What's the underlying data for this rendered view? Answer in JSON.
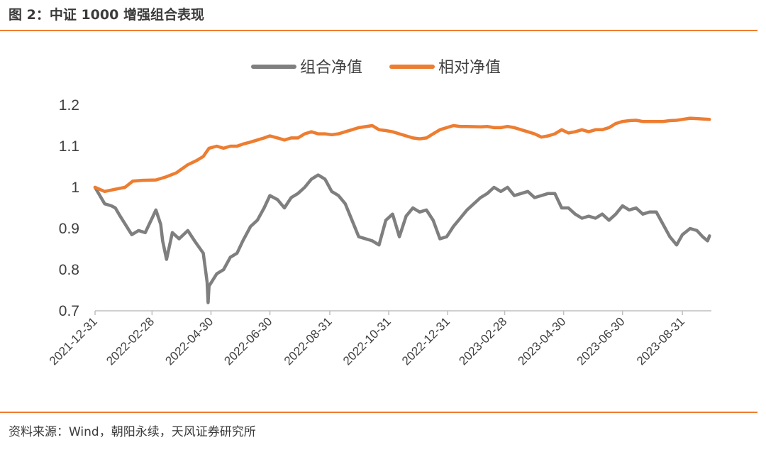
{
  "figure": {
    "title": "图 2：中证 1000 增强组合表现",
    "source": "资料来源：Wind，朝阳永续，天风证券研究所"
  },
  "chart_data": {
    "type": "line",
    "title": "",
    "xlabel": "",
    "ylabel": "",
    "ylim": [
      0.7,
      1.2
    ],
    "yticks": [
      0.7,
      0.8,
      0.9,
      1.0,
      1.1,
      1.2
    ],
    "ytick_labels": [
      "0.7",
      "0.8",
      "0.9",
      "1",
      "1.1",
      "1.2"
    ],
    "xlim": [
      "2021-12-31",
      "2023-09-30"
    ],
    "xticks": [
      "2021-12-31",
      "2022-02-28",
      "2022-04-30",
      "2022-06-30",
      "2022-08-31",
      "2022-10-31",
      "2022-12-31",
      "2023-02-28",
      "2023-04-30",
      "2023-06-30",
      "2023-08-31"
    ],
    "grid": false,
    "legend": "top-center",
    "series": [
      {
        "name": "组合净值",
        "color": "#7f7f7f",
        "points": [
          [
            "2021-12-31",
            1.0
          ],
          [
            "2022-01-05",
            0.98
          ],
          [
            "2022-01-10",
            0.96
          ],
          [
            "2022-01-17",
            0.955
          ],
          [
            "2022-01-21",
            0.95
          ],
          [
            "2022-01-26",
            0.93
          ],
          [
            "2022-02-07",
            0.885
          ],
          [
            "2022-02-14",
            0.895
          ],
          [
            "2022-02-21",
            0.89
          ],
          [
            "2022-02-28",
            0.925
          ],
          [
            "2022-03-04",
            0.945
          ],
          [
            "2022-03-09",
            0.91
          ],
          [
            "2022-03-11",
            0.87
          ],
          [
            "2022-03-15",
            0.825
          ],
          [
            "2022-03-21",
            0.89
          ],
          [
            "2022-03-28",
            0.875
          ],
          [
            "2022-04-06",
            0.895
          ],
          [
            "2022-04-13",
            0.87
          ],
          [
            "2022-04-19",
            0.85
          ],
          [
            "2022-04-22",
            0.84
          ],
          [
            "2022-04-26",
            0.77
          ],
          [
            "2022-04-27",
            0.72
          ],
          [
            "2022-04-28",
            0.76
          ],
          [
            "2022-05-06",
            0.79
          ],
          [
            "2022-05-13",
            0.8
          ],
          [
            "2022-05-20",
            0.83
          ],
          [
            "2022-05-27",
            0.84
          ],
          [
            "2022-06-02",
            0.87
          ],
          [
            "2022-06-10",
            0.905
          ],
          [
            "2022-06-17",
            0.92
          ],
          [
            "2022-06-24",
            0.95
          ],
          [
            "2022-06-30",
            0.98
          ],
          [
            "2022-07-08",
            0.97
          ],
          [
            "2022-07-15",
            0.95
          ],
          [
            "2022-07-22",
            0.975
          ],
          [
            "2022-07-29",
            0.985
          ],
          [
            "2022-08-05",
            1.0
          ],
          [
            "2022-08-12",
            1.02
          ],
          [
            "2022-08-19",
            1.03
          ],
          [
            "2022-08-26",
            1.02
          ],
          [
            "2022-09-02",
            0.99
          ],
          [
            "2022-09-09",
            0.98
          ],
          [
            "2022-09-16",
            0.96
          ],
          [
            "2022-09-23",
            0.92
          ],
          [
            "2022-09-30",
            0.88
          ],
          [
            "2022-10-14",
            0.87
          ],
          [
            "2022-10-21",
            0.86
          ],
          [
            "2022-10-28",
            0.92
          ],
          [
            "2022-11-04",
            0.935
          ],
          [
            "2022-11-11",
            0.88
          ],
          [
            "2022-11-18",
            0.93
          ],
          [
            "2022-11-25",
            0.95
          ],
          [
            "2022-12-02",
            0.94
          ],
          [
            "2022-12-09",
            0.945
          ],
          [
            "2022-12-16",
            0.92
          ],
          [
            "2022-12-23",
            0.875
          ],
          [
            "2022-12-30",
            0.88
          ],
          [
            "2023-01-06",
            0.905
          ],
          [
            "2023-01-13",
            0.925
          ],
          [
            "2023-01-20",
            0.945
          ],
          [
            "2023-02-03",
            0.975
          ],
          [
            "2023-02-10",
            0.985
          ],
          [
            "2023-02-17",
            1.0
          ],
          [
            "2023-02-24",
            0.99
          ],
          [
            "2023-03-03",
            1.0
          ],
          [
            "2023-03-10",
            0.98
          ],
          [
            "2023-03-17",
            0.985
          ],
          [
            "2023-03-24",
            0.99
          ],
          [
            "2023-03-31",
            0.975
          ],
          [
            "2023-04-07",
            0.98
          ],
          [
            "2023-04-14",
            0.985
          ],
          [
            "2023-04-21",
            0.985
          ],
          [
            "2023-04-28",
            0.95
          ],
          [
            "2023-05-05",
            0.95
          ],
          [
            "2023-05-12",
            0.935
          ],
          [
            "2023-05-19",
            0.925
          ],
          [
            "2023-05-26",
            0.93
          ],
          [
            "2023-06-02",
            0.925
          ],
          [
            "2023-06-09",
            0.935
          ],
          [
            "2023-06-16",
            0.92
          ],
          [
            "2023-06-23",
            0.935
          ],
          [
            "2023-06-30",
            0.955
          ],
          [
            "2023-07-07",
            0.945
          ],
          [
            "2023-07-14",
            0.95
          ],
          [
            "2023-07-21",
            0.935
          ],
          [
            "2023-07-28",
            0.94
          ],
          [
            "2023-08-04",
            0.94
          ],
          [
            "2023-08-11",
            0.91
          ],
          [
            "2023-08-18",
            0.88
          ],
          [
            "2023-08-25",
            0.86
          ],
          [
            "2023-08-31",
            0.885
          ],
          [
            "2023-09-08",
            0.9
          ],
          [
            "2023-09-15",
            0.895
          ],
          [
            "2023-09-21",
            0.88
          ],
          [
            "2023-09-26",
            0.87
          ],
          [
            "2023-09-28",
            0.882
          ]
        ]
      },
      {
        "name": "相对净值",
        "color": "#ed7d31",
        "points": [
          [
            "2021-12-31",
            1.0
          ],
          [
            "2022-01-10",
            0.99
          ],
          [
            "2022-01-20",
            0.995
          ],
          [
            "2022-01-31",
            1.0
          ],
          [
            "2022-02-08",
            1.015
          ],
          [
            "2022-02-18",
            1.017
          ],
          [
            "2022-03-04",
            1.018
          ],
          [
            "2022-03-14",
            1.025
          ],
          [
            "2022-03-25",
            1.035
          ],
          [
            "2022-04-06",
            1.055
          ],
          [
            "2022-04-15",
            1.065
          ],
          [
            "2022-04-22",
            1.075
          ],
          [
            "2022-04-28",
            1.095
          ],
          [
            "2022-05-06",
            1.1
          ],
          [
            "2022-05-13",
            1.095
          ],
          [
            "2022-05-20",
            1.1
          ],
          [
            "2022-05-27",
            1.1
          ],
          [
            "2022-06-02",
            1.105
          ],
          [
            "2022-06-10",
            1.11
          ],
          [
            "2022-06-17",
            1.115
          ],
          [
            "2022-06-24",
            1.12
          ],
          [
            "2022-06-30",
            1.125
          ],
          [
            "2022-07-08",
            1.12
          ],
          [
            "2022-07-15",
            1.115
          ],
          [
            "2022-07-22",
            1.12
          ],
          [
            "2022-07-29",
            1.12
          ],
          [
            "2022-08-05",
            1.13
          ],
          [
            "2022-08-12",
            1.135
          ],
          [
            "2022-08-19",
            1.13
          ],
          [
            "2022-08-26",
            1.13
          ],
          [
            "2022-09-02",
            1.128
          ],
          [
            "2022-09-09",
            1.13
          ],
          [
            "2022-09-16",
            1.135
          ],
          [
            "2022-09-23",
            1.14
          ],
          [
            "2022-09-30",
            1.145
          ],
          [
            "2022-10-14",
            1.15
          ],
          [
            "2022-10-21",
            1.14
          ],
          [
            "2022-10-28",
            1.138
          ],
          [
            "2022-11-04",
            1.135
          ],
          [
            "2022-11-11",
            1.13
          ],
          [
            "2022-11-18",
            1.125
          ],
          [
            "2022-11-25",
            1.12
          ],
          [
            "2022-12-02",
            1.118
          ],
          [
            "2022-12-09",
            1.12
          ],
          [
            "2022-12-16",
            1.13
          ],
          [
            "2022-12-23",
            1.14
          ],
          [
            "2022-12-30",
            1.145
          ],
          [
            "2023-01-06",
            1.15
          ],
          [
            "2023-01-13",
            1.148
          ],
          [
            "2023-01-20",
            1.148
          ],
          [
            "2023-02-03",
            1.147
          ],
          [
            "2023-02-10",
            1.148
          ],
          [
            "2023-02-17",
            1.145
          ],
          [
            "2023-02-24",
            1.145
          ],
          [
            "2023-03-03",
            1.148
          ],
          [
            "2023-03-10",
            1.145
          ],
          [
            "2023-03-17",
            1.14
          ],
          [
            "2023-03-24",
            1.135
          ],
          [
            "2023-03-31",
            1.13
          ],
          [
            "2023-04-07",
            1.122
          ],
          [
            "2023-04-14",
            1.125
          ],
          [
            "2023-04-21",
            1.13
          ],
          [
            "2023-04-28",
            1.14
          ],
          [
            "2023-05-05",
            1.132
          ],
          [
            "2023-05-12",
            1.135
          ],
          [
            "2023-05-19",
            1.14
          ],
          [
            "2023-05-26",
            1.135
          ],
          [
            "2023-06-02",
            1.14
          ],
          [
            "2023-06-09",
            1.14
          ],
          [
            "2023-06-16",
            1.145
          ],
          [
            "2023-06-23",
            1.155
          ],
          [
            "2023-06-30",
            1.16
          ],
          [
            "2023-07-07",
            1.162
          ],
          [
            "2023-07-14",
            1.163
          ],
          [
            "2023-07-21",
            1.16
          ],
          [
            "2023-07-28",
            1.16
          ],
          [
            "2023-08-04",
            1.16
          ],
          [
            "2023-08-11",
            1.16
          ],
          [
            "2023-08-18",
            1.162
          ],
          [
            "2023-08-25",
            1.163
          ],
          [
            "2023-08-31",
            1.165
          ],
          [
            "2023-09-08",
            1.168
          ],
          [
            "2023-09-15",
            1.167
          ],
          [
            "2023-09-22",
            1.166
          ],
          [
            "2023-09-28",
            1.165
          ]
        ]
      }
    ]
  }
}
